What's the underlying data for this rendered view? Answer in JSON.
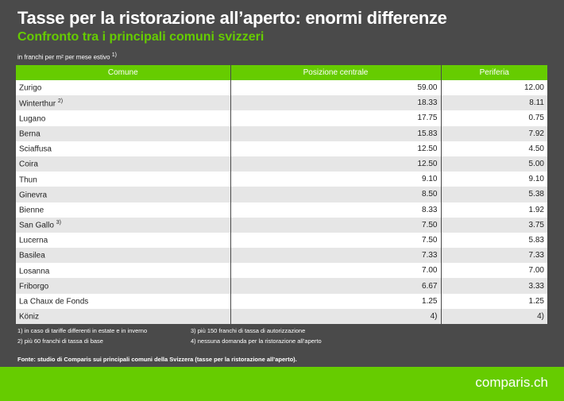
{
  "title": "Tasse per la ristorazione all’aperto: enormi differenze",
  "subtitle": "Confronto tra i principali comuni svizzeri",
  "unit": "in franchi per m² per mese estivo",
  "unit_note": "1)",
  "headers": [
    "Comune",
    "Posizione centrale",
    "Periferia"
  ],
  "rows": [
    {
      "comune": "Zurigo",
      "note": "",
      "centrale": "59.00",
      "periferia": "12.00"
    },
    {
      "comune": "Winterthur",
      "note": "2)",
      "centrale": "18.33",
      "periferia": "8.11"
    },
    {
      "comune": "Lugano",
      "note": "",
      "centrale": "17.75",
      "periferia": "0.75"
    },
    {
      "comune": "Berna",
      "note": "",
      "centrale": "15.83",
      "periferia": "7.92"
    },
    {
      "comune": "Sciaffusa",
      "note": "",
      "centrale": "12.50",
      "periferia": "4.50"
    },
    {
      "comune": "Coira",
      "note": "",
      "centrale": "12.50",
      "periferia": "5.00"
    },
    {
      "comune": "Thun",
      "note": "",
      "centrale": "9.10",
      "periferia": "9.10"
    },
    {
      "comune": "Ginevra",
      "note": "",
      "centrale": "8.50",
      "periferia": "5.38"
    },
    {
      "comune": "Bienne",
      "note": "",
      "centrale": "8.33",
      "periferia": "1.92"
    },
    {
      "comune": "San Gallo",
      "note": "3)",
      "centrale": "7.50",
      "periferia": "3.75"
    },
    {
      "comune": "Lucerna",
      "note": "",
      "centrale": "7.50",
      "periferia": "5.83"
    },
    {
      "comune": "Basilea",
      "note": "",
      "centrale": "7.33",
      "periferia": "7.33"
    },
    {
      "comune": "Losanna",
      "note": "",
      "centrale": "7.00",
      "periferia": "7.00"
    },
    {
      "comune": "Friborgo",
      "note": "",
      "centrale": "6.67",
      "periferia": "3.33"
    },
    {
      "comune": "La Chaux de Fonds",
      "note": "",
      "centrale": "1.25",
      "periferia": "1.25"
    },
    {
      "comune": "Köniz",
      "note": "",
      "centrale": "4)",
      "periferia": "4)"
    }
  ],
  "notes": [
    "1) in caso di tariffe differenti in estate e in inverno",
    "2) più 60 franchi di tassa di base",
    "3) più 150 franchi di tassa di autorizzazione",
    "4) nessuna domanda per la ristorazione all’aperto"
  ],
  "source": "Fonte: studio di Comparis sui principali comuni della Svizzera (tasse per la ristorazione all’aperto).",
  "logo": "comparis.ch",
  "colors": {
    "accent": "#66cc00",
    "background": "#4a4a4a"
  }
}
